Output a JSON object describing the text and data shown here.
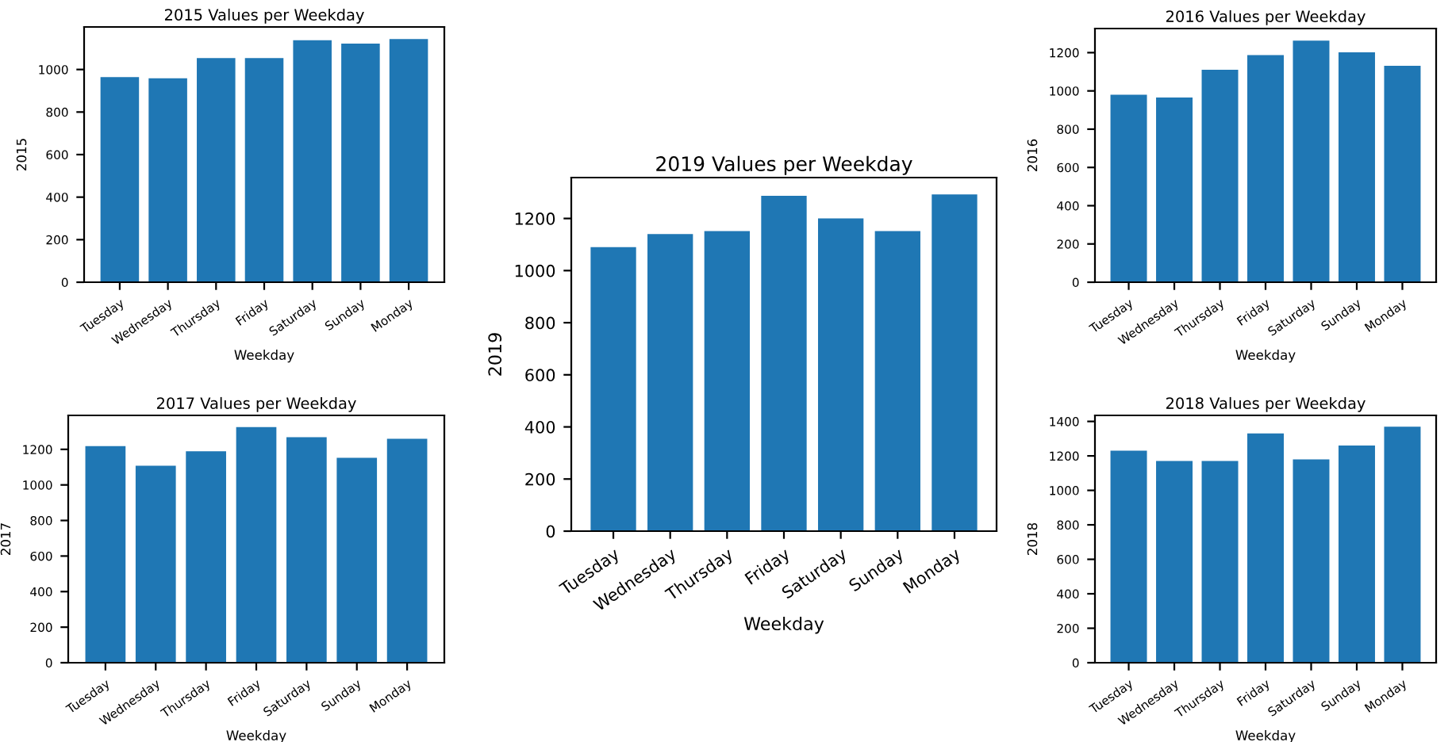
{
  "chart_data": [
    {
      "type": "bar",
      "title": "2015 Values per Weekday",
      "xlabel": "Weekday",
      "ylabel": "2015",
      "categories": [
        "Tuesday",
        "Wednesday",
        "Thursday",
        "Friday",
        "Saturday",
        "Sunday",
        "Monday"
      ],
      "color": "#1f77b4",
      "values": [
        964,
        959,
        1054,
        1054,
        1138,
        1122,
        1143
      ],
      "ylim": [
        0,
        1200
      ],
      "yticks": [
        0,
        200,
        400,
        600,
        800,
        1000
      ]
    },
    {
      "type": "bar",
      "title": "2016 Values per Weekday",
      "xlabel": "Weekday",
      "ylabel": "2016",
      "categories": [
        "Tuesday",
        "Wednesday",
        "Thursday",
        "Friday",
        "Saturday",
        "Sunday",
        "Monday"
      ],
      "color": "#1f77b4",
      "values": [
        980,
        965,
        1111,
        1187,
        1263,
        1202,
        1131
      ],
      "ylim": [
        0,
        1326
      ],
      "yticks": [
        0,
        200,
        400,
        600,
        800,
        1000,
        1200
      ]
    },
    {
      "type": "bar",
      "title": "2019 Values per Weekday",
      "xlabel": "Weekday",
      "ylabel": "2019",
      "categories": [
        "Tuesday",
        "Wednesday",
        "Thursday",
        "Friday",
        "Saturday",
        "Sunday",
        "Monday"
      ],
      "color": "#1f77b4",
      "values": [
        1090,
        1140,
        1152,
        1287,
        1200,
        1152,
        1292
      ],
      "ylim": [
        0,
        1357
      ],
      "yticks": [
        0,
        200,
        400,
        600,
        800,
        1000,
        1200
      ]
    },
    {
      "type": "bar",
      "title": "2017 Values per Weekday",
      "xlabel": "Weekday",
      "ylabel": "2017",
      "categories": [
        "Tuesday",
        "Wednesday",
        "Thursday",
        "Friday",
        "Saturday",
        "Sunday",
        "Monday"
      ],
      "color": "#1f77b4",
      "values": [
        1218,
        1108,
        1189,
        1325,
        1268,
        1152,
        1260
      ],
      "ylim": [
        0,
        1391
      ],
      "yticks": [
        0,
        200,
        400,
        600,
        800,
        1000,
        1200
      ]
    },
    {
      "type": "bar",
      "title": "2018 Values per Weekday",
      "xlabel": "Weekday",
      "ylabel": "2018",
      "categories": [
        "Tuesday",
        "Wednesday",
        "Thursday",
        "Friday",
        "Saturday",
        "Sunday",
        "Monday"
      ],
      "color": "#1f77b4",
      "values": [
        1230,
        1170,
        1170,
        1330,
        1180,
        1260,
        1370
      ],
      "ylim": [
        0,
        1435
      ],
      "yticks": [
        0,
        200,
        400,
        600,
        800,
        1000,
        1200,
        1400
      ]
    }
  ]
}
